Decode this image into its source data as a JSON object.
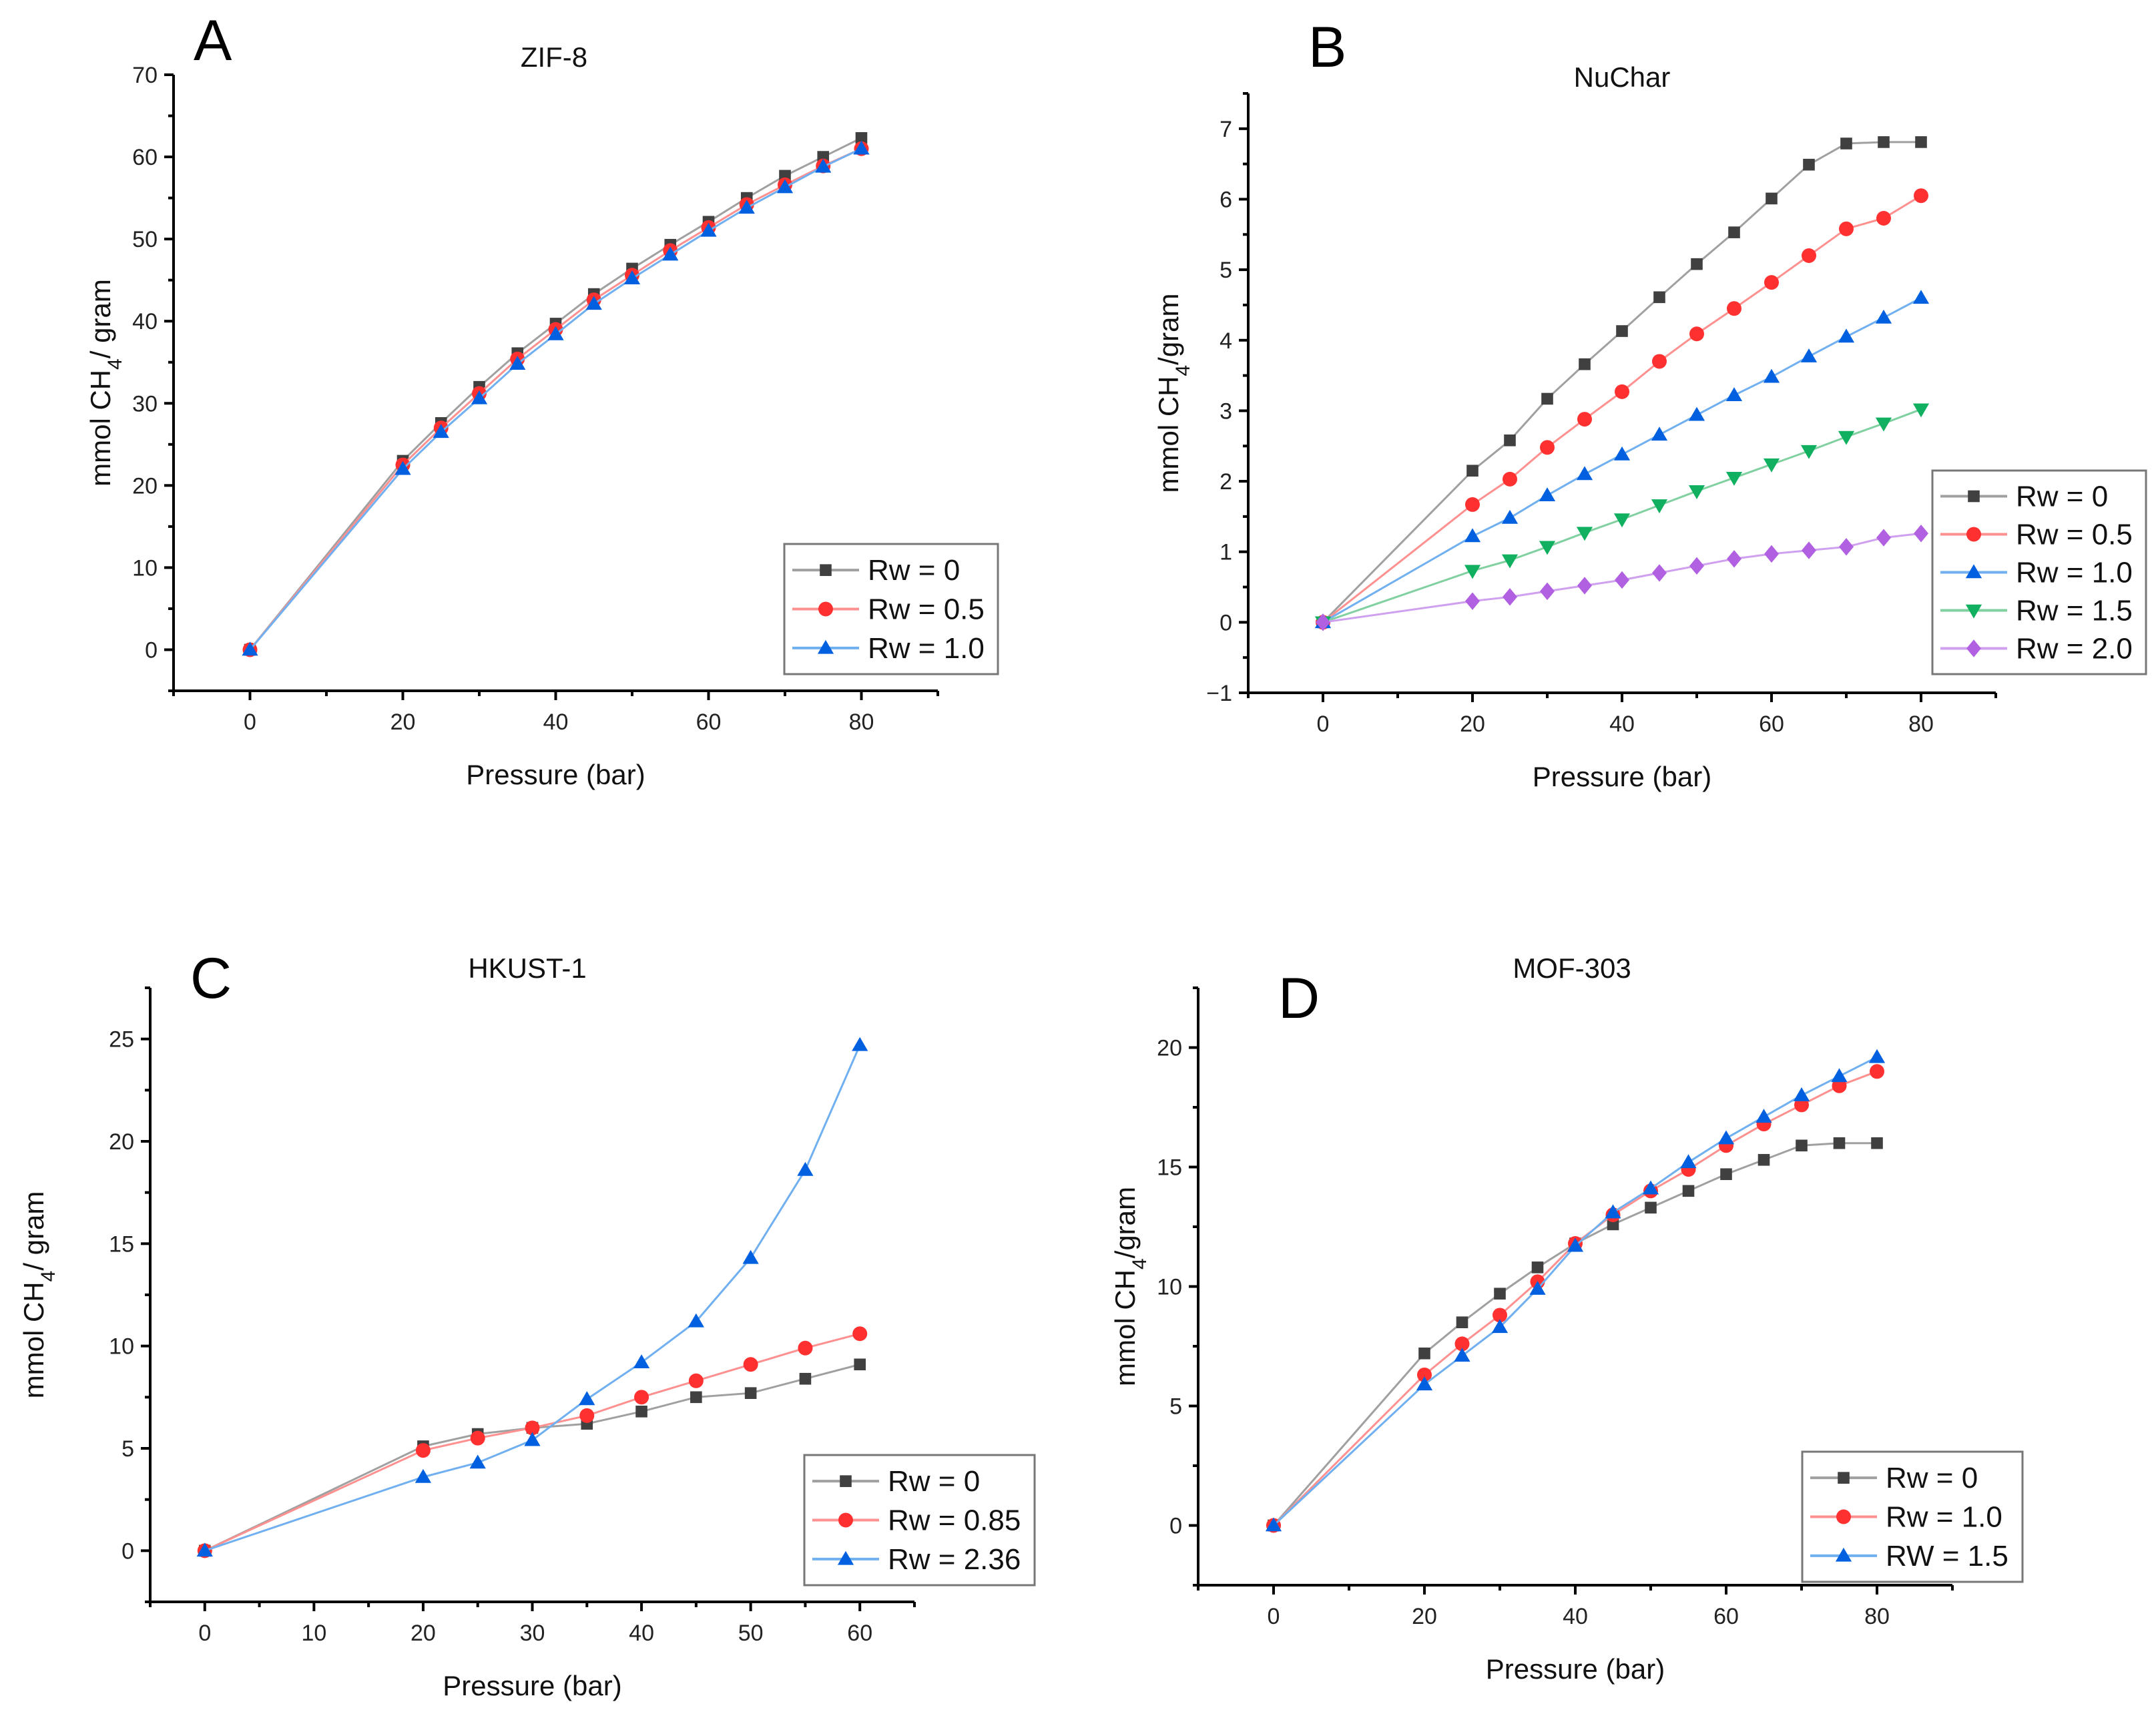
{
  "chart_data": [
    {
      "type": "line",
      "panel_label": "A",
      "title": "ZIF-8",
      "xlabel": "Pressure (bar)",
      "ylabel": "mmol CH4/ gram",
      "xlim": [
        -10,
        90
      ],
      "ylim": [
        -5,
        70
      ],
      "xticks": [
        0,
        20,
        40,
        60,
        80
      ],
      "yticks": [
        0,
        10,
        20,
        30,
        40,
        50,
        60,
        70
      ],
      "legend_position": "bottom-right",
      "x": [
        0,
        20,
        25,
        30,
        35,
        40,
        45,
        50,
        55,
        60,
        65,
        70,
        75,
        80
      ],
      "series": [
        {
          "name": "Rw = 0",
          "marker": "square",
          "color": "#404040",
          "line_color": "#a0a0a0",
          "values": [
            0,
            23.0,
            27.6,
            32.0,
            36.1,
            39.7,
            43.3,
            46.4,
            49.3,
            52.1,
            55.0,
            57.7,
            60.0,
            62.3
          ]
        },
        {
          "name": "Rw = 0.5",
          "marker": "circle",
          "color": "#ff3030",
          "line_color": "#ff9090",
          "values": [
            0,
            22.5,
            27.0,
            31.2,
            35.4,
            39.0,
            42.6,
            45.6,
            48.6,
            51.4,
            54.2,
            56.6,
            58.9,
            61.0
          ]
        },
        {
          "name": "Rw = 1.0",
          "marker": "triangle-up",
          "color": "#0060e0",
          "line_color": "#70b0f0",
          "values": [
            0,
            22.0,
            26.5,
            30.6,
            34.8,
            38.4,
            42.1,
            45.2,
            48.1,
            51.0,
            53.8,
            56.3,
            58.8,
            61.0
          ]
        }
      ]
    },
    {
      "type": "line",
      "panel_label": "B",
      "title": "NuChar",
      "xlabel": "Pressure (bar)",
      "ylabel": "mmol CH4/gram",
      "xlim": [
        -10,
        90
      ],
      "ylim": [
        -1,
        7.5
      ],
      "xticks": [
        0,
        20,
        40,
        60,
        80
      ],
      "yticks": [
        -1,
        0,
        1,
        2,
        3,
        4,
        5,
        6,
        7
      ],
      "legend_position": "right",
      "x": [
        0,
        20,
        25,
        30,
        35,
        40,
        45,
        50,
        55,
        60,
        65,
        70,
        75,
        80
      ],
      "series": [
        {
          "name": "Rw = 0",
          "marker": "square",
          "color": "#404040",
          "line_color": "#a0a0a0",
          "values": [
            0,
            2.15,
            2.58,
            3.17,
            3.66,
            4.13,
            4.61,
            5.08,
            5.53,
            6.01,
            6.49,
            6.79,
            6.81,
            6.81
          ]
        },
        {
          "name": "Rw = 0.5",
          "marker": "circle",
          "color": "#ff3030",
          "line_color": "#ff9090",
          "values": [
            0,
            1.67,
            2.03,
            2.48,
            2.88,
            3.27,
            3.7,
            4.09,
            4.45,
            4.82,
            5.2,
            5.58,
            5.73,
            6.05
          ]
        },
        {
          "name": "Rw = 1.0",
          "marker": "triangle-up",
          "color": "#0060e0",
          "line_color": "#70b0f0",
          "values": [
            0,
            1.22,
            1.48,
            1.8,
            2.1,
            2.38,
            2.66,
            2.94,
            3.22,
            3.48,
            3.77,
            4.05,
            4.32,
            4.6
          ]
        },
        {
          "name": "Rw = 1.5",
          "marker": "triangle-down",
          "color": "#10b060",
          "line_color": "#80d0a0",
          "values": [
            0,
            0.73,
            0.88,
            1.07,
            1.27,
            1.46,
            1.66,
            1.86,
            2.05,
            2.24,
            2.43,
            2.63,
            2.82,
            3.02
          ]
        },
        {
          "name": "Rw = 2.0",
          "marker": "diamond",
          "color": "#b060e0",
          "line_color": "#d0a0f0",
          "values": [
            0,
            0.3,
            0.36,
            0.44,
            0.52,
            0.6,
            0.7,
            0.8,
            0.9,
            0.97,
            1.02,
            1.07,
            1.2,
            1.26
          ]
        }
      ]
    },
    {
      "type": "line",
      "panel_label": "C",
      "title": "HKUST-1",
      "xlabel": "Pressure (bar)",
      "ylabel": "mmol CH4/ gram",
      "xlim": [
        -5,
        65
      ],
      "ylim": [
        -2.5,
        27.5
      ],
      "xticks": [
        0,
        10,
        20,
        30,
        40,
        50,
        60
      ],
      "yticks": [
        0,
        5,
        10,
        15,
        20,
        25
      ],
      "legend_position": "bottom-right",
      "x": [
        0,
        20,
        25,
        30,
        35,
        40,
        45,
        50,
        55,
        60
      ],
      "series": [
        {
          "name": "Rw = 0",
          "marker": "square",
          "color": "#404040",
          "line_color": "#a0a0a0",
          "values": [
            0,
            5.1,
            5.7,
            6.0,
            6.2,
            6.8,
            7.5,
            7.7,
            8.4,
            9.1
          ]
        },
        {
          "name": "Rw = 0.85",
          "marker": "circle",
          "color": "#ff3030",
          "line_color": "#ff9090",
          "values": [
            0,
            4.9,
            5.5,
            6.0,
            6.6,
            7.5,
            8.3,
            9.1,
            9.9,
            10.6
          ]
        },
        {
          "name": "Rw = 2.36",
          "marker": "triangle-up",
          "color": "#0060e0",
          "line_color": "#70b0f0",
          "values": [
            0,
            3.6,
            4.3,
            5.4,
            7.4,
            9.2,
            11.2,
            14.3,
            18.6,
            24.7
          ]
        }
      ]
    },
    {
      "type": "line",
      "panel_label": "D",
      "title": "MOF-303",
      "xlabel": "Pressure (bar)",
      "ylabel": "mmol CH4/gram",
      "xlim": [
        -10,
        90
      ],
      "ylim": [
        -2.5,
        22.5
      ],
      "xticks": [
        0,
        20,
        40,
        60,
        80
      ],
      "yticks": [
        0,
        5,
        10,
        15,
        20
      ],
      "legend_position": "bottom-right",
      "x": [
        0,
        20,
        25,
        30,
        35,
        40,
        45,
        50,
        55,
        60,
        65,
        70,
        75,
        80
      ],
      "series": [
        {
          "name": "Rw = 0",
          "marker": "square",
          "color": "#404040",
          "line_color": "#a0a0a0",
          "values": [
            0,
            7.2,
            8.5,
            9.7,
            10.8,
            11.8,
            12.6,
            13.3,
            14.0,
            14.7,
            15.3,
            15.9,
            16.0,
            16.0
          ]
        },
        {
          "name": "Rw = 1.0",
          "marker": "circle",
          "color": "#ff3030",
          "line_color": "#ff9090",
          "values": [
            0,
            6.3,
            7.6,
            8.8,
            10.2,
            11.8,
            13.0,
            14.0,
            14.9,
            15.9,
            16.8,
            17.6,
            18.4,
            19.0
          ]
        },
        {
          "name": "RW = 1.5",
          "marker": "triangle-up",
          "color": "#0060e0",
          "line_color": "#70b0f0",
          "values": [
            0,
            5.9,
            7.1,
            8.3,
            9.9,
            11.7,
            13.1,
            14.1,
            15.2,
            16.2,
            17.1,
            18.0,
            18.8,
            19.6
          ]
        }
      ]
    }
  ]
}
